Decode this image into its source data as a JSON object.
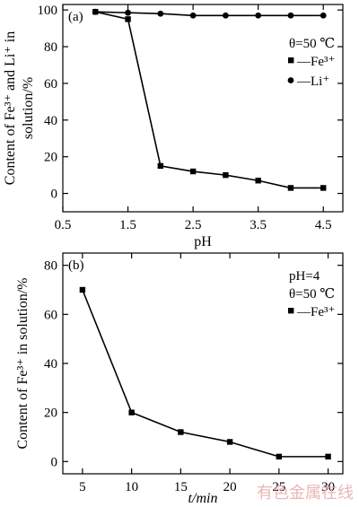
{
  "chart_data": [
    {
      "type": "line",
      "panel_label": "(a)",
      "ylabel_lines": [
        "Content of Fe³⁺ and Li⁺ in",
        "solution/%"
      ],
      "xlabel": "pH",
      "xlim": [
        0.5,
        4.8
      ],
      "ylim": [
        -10,
        103
      ],
      "x_ticks": [
        0.5,
        1.5,
        2.5,
        3.5,
        4.5
      ],
      "x_tick_labels": [
        "0.5",
        "1.5",
        "2.5",
        "3.5",
        "4.5"
      ],
      "y_ticks": [
        0,
        20,
        40,
        60,
        80,
        100
      ],
      "y_tick_labels": [
        "0",
        "20",
        "40",
        "60",
        "80",
        "100"
      ],
      "legend_lines": [
        "θ=50 ℃"
      ],
      "legend_placement": "top-right",
      "series": [
        {
          "name": "—Fe³⁺",
          "marker": "square",
          "x": [
            1.0,
            1.5,
            2.0,
            2.5,
            3.0,
            3.5,
            4.0,
            4.5
          ],
          "y": [
            99,
            95,
            15,
            12,
            10,
            7,
            3,
            3
          ]
        },
        {
          "name": "—Li⁺",
          "marker": "circle",
          "x": [
            1.0,
            1.5,
            2.0,
            2.5,
            3.0,
            3.5,
            4.0,
            4.5
          ],
          "y": [
            99,
            98.5,
            98,
            97,
            97,
            97,
            97,
            97
          ]
        }
      ]
    },
    {
      "type": "line",
      "panel_label": "(b)",
      "ylabel_lines": [
        "Content of Fe³⁺ in solution/%"
      ],
      "xlabel": "t/min",
      "xlim": [
        3,
        31.5
      ],
      "ylim": [
        -5,
        85
      ],
      "x_ticks": [
        5,
        10,
        15,
        20,
        25,
        30
      ],
      "x_tick_labels": [
        "5",
        "10",
        "15",
        "20",
        "25",
        "30"
      ],
      "y_ticks": [
        0,
        20,
        40,
        60,
        80
      ],
      "y_tick_labels": [
        "0",
        "20",
        "40",
        "60",
        "80"
      ],
      "legend_lines": [
        "pH=4",
        "θ=50 ℃"
      ],
      "legend_placement": "top-right",
      "series": [
        {
          "name": "—Fe³⁺",
          "marker": "square",
          "x": [
            5,
            10,
            15,
            20,
            25,
            30
          ],
          "y": [
            70,
            20,
            12,
            8,
            2,
            2
          ]
        }
      ]
    }
  ],
  "watermark": "有色金属在线"
}
